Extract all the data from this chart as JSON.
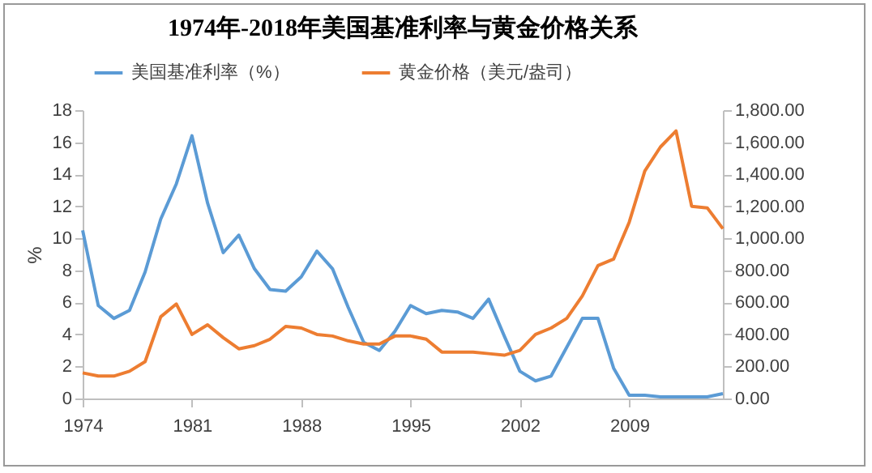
{
  "chart_data": {
    "type": "line",
    "title": "1974年-2018年美国基准利率与黄金价格关系",
    "ylabel": "%",
    "legend": "top",
    "x": [
      1974,
      1975,
      1976,
      1977,
      1978,
      1979,
      1980,
      1981,
      1982,
      1983,
      1984,
      1985,
      1986,
      1987,
      1988,
      1989,
      1990,
      1991,
      1992,
      1993,
      1994,
      1995,
      1996,
      1997,
      1998,
      1999,
      2000,
      2001,
      2002,
      2003,
      2004,
      2005,
      2006,
      2007,
      2008,
      2009,
      2010,
      2011,
      2012,
      2013,
      2014,
      2015
    ],
    "xlim": [
      1974,
      2015
    ],
    "xticks": [
      1974,
      1981,
      1988,
      1995,
      2002,
      2009
    ],
    "ylim": [
      0,
      18
    ],
    "yticks": [
      0,
      2,
      4,
      6,
      8,
      10,
      12,
      14,
      16,
      18
    ],
    "y2lim": [
      0,
      1800
    ],
    "y2ticks": [
      {
        "value": 0,
        "label": "0.00"
      },
      {
        "value": 200,
        "label": "200.00"
      },
      {
        "value": 400,
        "label": "400.00"
      },
      {
        "value": 600,
        "label": "600.00"
      },
      {
        "value": 800,
        "label": "800.00"
      },
      {
        "value": 1000,
        "label": "1,000.00"
      },
      {
        "value": 1200,
        "label": "1,200.00"
      },
      {
        "value": 1400,
        "label": "1,400.00"
      },
      {
        "value": 1600,
        "label": "1,600.00"
      },
      {
        "value": 1800,
        "label": "1,800.00"
      }
    ],
    "series": [
      {
        "name": "美国基准利率（%）",
        "color": "#5b9bd5",
        "values": [
          10.5,
          5.8,
          5.0,
          5.5,
          7.9,
          11.2,
          13.4,
          16.4,
          12.2,
          9.1,
          10.2,
          8.1,
          6.8,
          6.7,
          7.6,
          9.2,
          8.1,
          5.7,
          3.5,
          3.0,
          4.2,
          5.8,
          5.3,
          5.5,
          5.4,
          5.0,
          6.2,
          3.9,
          1.7,
          1.1,
          1.4,
          3.2,
          5.0,
          5.0,
          1.9,
          0.2,
          0.2,
          0.1,
          0.1,
          0.1,
          0.1,
          0.3
        ]
      },
      {
        "name": "黄金价格（美元/盎司）",
        "color": "#ed7d31",
        "axis": "y2",
        "values": [
          160,
          140,
          140,
          170,
          230,
          510,
          590,
          400,
          460,
          380,
          310,
          330,
          370,
          450,
          440,
          400,
          390,
          360,
          340,
          340,
          390,
          390,
          370,
          290,
          290,
          290,
          280,
          270,
          300,
          400,
          440,
          500,
          640,
          830,
          870,
          1100,
          1420,
          1570,
          1670,
          1200,
          1190,
          1060
        ]
      }
    ]
  }
}
